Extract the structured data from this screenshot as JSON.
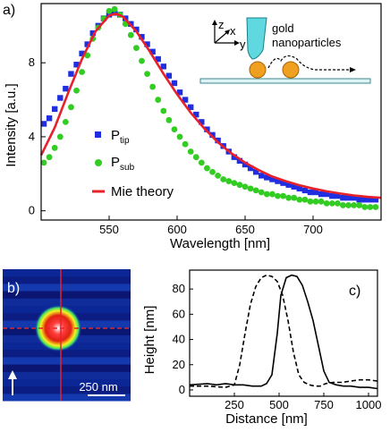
{
  "chart_data": [
    {
      "type": "scatter",
      "panel_label": "a)",
      "xlabel": "Wavelength [nm]",
      "ylabel": "Intensity [a.u.]",
      "xlim": [
        500,
        750
      ],
      "ylim": [
        -0.5,
        11.2
      ],
      "xticks": [
        550,
        600,
        650,
        700
      ],
      "yticks": [
        0,
        4,
        8
      ],
      "legend_position": "lower-left",
      "series": [
        {
          "name": "P",
          "subscript": "tip",
          "marker": "square",
          "color": "#1f2ee0",
          "x": [
            502,
            506,
            510,
            514,
            518,
            522,
            526,
            530,
            534,
            538,
            542,
            546,
            550,
            554,
            558,
            562,
            566,
            570,
            574,
            578,
            582,
            586,
            590,
            594,
            598,
            602,
            606,
            610,
            614,
            618,
            622,
            626,
            630,
            634,
            638,
            642,
            646,
            650,
            654,
            658,
            662,
            666,
            670,
            674,
            678,
            682,
            686,
            690,
            694,
            698,
            702,
            706,
            710,
            714,
            718,
            722,
            726,
            730,
            734,
            738,
            742,
            746
          ],
          "y": [
            4.7,
            5.0,
            5.5,
            6.1,
            6.6,
            7.4,
            7.9,
            8.5,
            9.0,
            9.6,
            10.0,
            10.4,
            10.6,
            10.7,
            10.6,
            10.4,
            10.1,
            9.8,
            9.4,
            9.0,
            8.6,
            8.2,
            7.8,
            7.3,
            6.9,
            6.4,
            6.0,
            5.6,
            5.2,
            4.8,
            4.4,
            4.1,
            3.8,
            3.5,
            3.2,
            2.9,
            2.7,
            2.5,
            2.3,
            2.1,
            1.9,
            1.8,
            1.7,
            1.6,
            1.5,
            1.4,
            1.3,
            1.2,
            1.1,
            1.0,
            1.0,
            0.9,
            0.9,
            0.8,
            0.8,
            0.7,
            0.7,
            0.7,
            0.6,
            0.6,
            0.6,
            0.6
          ]
        },
        {
          "name": "P",
          "subscript": "sub",
          "marker": "circle",
          "color": "#33cc22",
          "x": [
            502,
            506,
            510,
            514,
            518,
            522,
            526,
            530,
            534,
            538,
            542,
            546,
            550,
            554,
            558,
            562,
            566,
            570,
            574,
            578,
            582,
            586,
            590,
            594,
            598,
            602,
            606,
            610,
            614,
            618,
            622,
            626,
            630,
            634,
            638,
            642,
            646,
            650,
            654,
            658,
            662,
            666,
            670,
            674,
            678,
            682,
            686,
            690,
            694,
            698,
            702,
            706,
            710,
            714,
            718,
            722,
            726,
            730,
            734,
            738,
            742,
            746
          ],
          "y": [
            2.6,
            2.9,
            3.4,
            4.0,
            4.8,
            5.6,
            6.5,
            7.5,
            8.4,
            9.3,
            9.9,
            10.4,
            10.8,
            10.9,
            10.6,
            10.1,
            9.5,
            8.8,
            8.1,
            7.4,
            6.7,
            6.0,
            5.4,
            4.9,
            4.4,
            4.0,
            3.6,
            3.2,
            2.9,
            2.6,
            2.3,
            2.1,
            1.9,
            1.7,
            1.6,
            1.5,
            1.4,
            1.3,
            1.2,
            1.1,
            1.0,
            0.9,
            0.9,
            0.8,
            0.8,
            0.7,
            0.7,
            0.6,
            0.6,
            0.5,
            0.5,
            0.5,
            0.4,
            0.4,
            0.4,
            0.3,
            0.3,
            0.3,
            0.3,
            0.2,
            0.2,
            0.2
          ]
        },
        {
          "name": "Mie theory",
          "marker": "line",
          "color": "#e8202a",
          "x": [
            500,
            510,
            520,
            530,
            540,
            550,
            555,
            560,
            570,
            580,
            590,
            600,
            610,
            620,
            630,
            640,
            650,
            660,
            670,
            680,
            690,
            700,
            710,
            720,
            730,
            740,
            750
          ],
          "y": [
            3.0,
            4.5,
            6.4,
            8.2,
            9.7,
            10.55,
            10.65,
            10.5,
            9.7,
            8.6,
            7.4,
            6.3,
            5.3,
            4.45,
            3.7,
            3.1,
            2.6,
            2.2,
            1.85,
            1.6,
            1.38,
            1.2,
            1.05,
            0.93,
            0.83,
            0.75,
            0.7
          ]
        }
      ]
    },
    {
      "type": "line",
      "panel_label": "c)",
      "xlabel": "Distance [nm]",
      "ylabel": "Height [nm]",
      "xlim": [
        0,
        1050
      ],
      "ylim": [
        -5,
        95
      ],
      "xticks": [
        250,
        500,
        750,
        1000
      ],
      "xticks_minor": [
        250,
        500,
        750,
        1000
      ],
      "xtick_labels_printed": [
        "250",
        "500",
        "750",
        "1000"
      ],
      "xticks_labeled_extra": [
        250,
        1000
      ],
      "yticks": [
        0,
        20,
        40,
        60,
        80
      ],
      "series": [
        {
          "style": "dashed",
          "x": [
            0,
            100,
            200,
            250,
            280,
            310,
            340,
            370,
            400,
            430,
            460,
            490,
            520,
            550,
            580,
            610,
            640,
            670,
            700,
            730,
            760,
            800,
            850,
            900,
            950,
            1000,
            1050
          ],
          "y": [
            3,
            3,
            2,
            4,
            20,
            45,
            68,
            82,
            89,
            91,
            90,
            86,
            75,
            55,
            30,
            12,
            6,
            4,
            3,
            3,
            5,
            6,
            6,
            7,
            8,
            8,
            7
          ]
        },
        {
          "style": "solid",
          "x": [
            0,
            100,
            150,
            200,
            250,
            300,
            350,
            400,
            430,
            460,
            490,
            510,
            540,
            570,
            600,
            630,
            660,
            690,
            720,
            750,
            780,
            820,
            860,
            900,
            950,
            1000,
            1050
          ],
          "y": [
            4,
            5,
            4,
            5,
            4,
            4,
            3,
            3,
            5,
            12,
            45,
            75,
            89,
            91,
            90,
            83,
            70,
            55,
            35,
            15,
            6,
            4,
            3,
            3,
            2,
            2,
            1
          ]
        }
      ]
    }
  ],
  "panel_b": {
    "label": "b)",
    "scalebar_text": "250 nm"
  },
  "inset": {
    "text_line1": "gold",
    "text_line2": "nanoparticles",
    "axis_z": "z",
    "axis_x": "x",
    "axis_y": "y"
  },
  "legend": {
    "ptip_main": "P",
    "ptip_sub": "tip",
    "psub_main": "P",
    "psub_sub": "sub",
    "mie": "Mie theory"
  }
}
